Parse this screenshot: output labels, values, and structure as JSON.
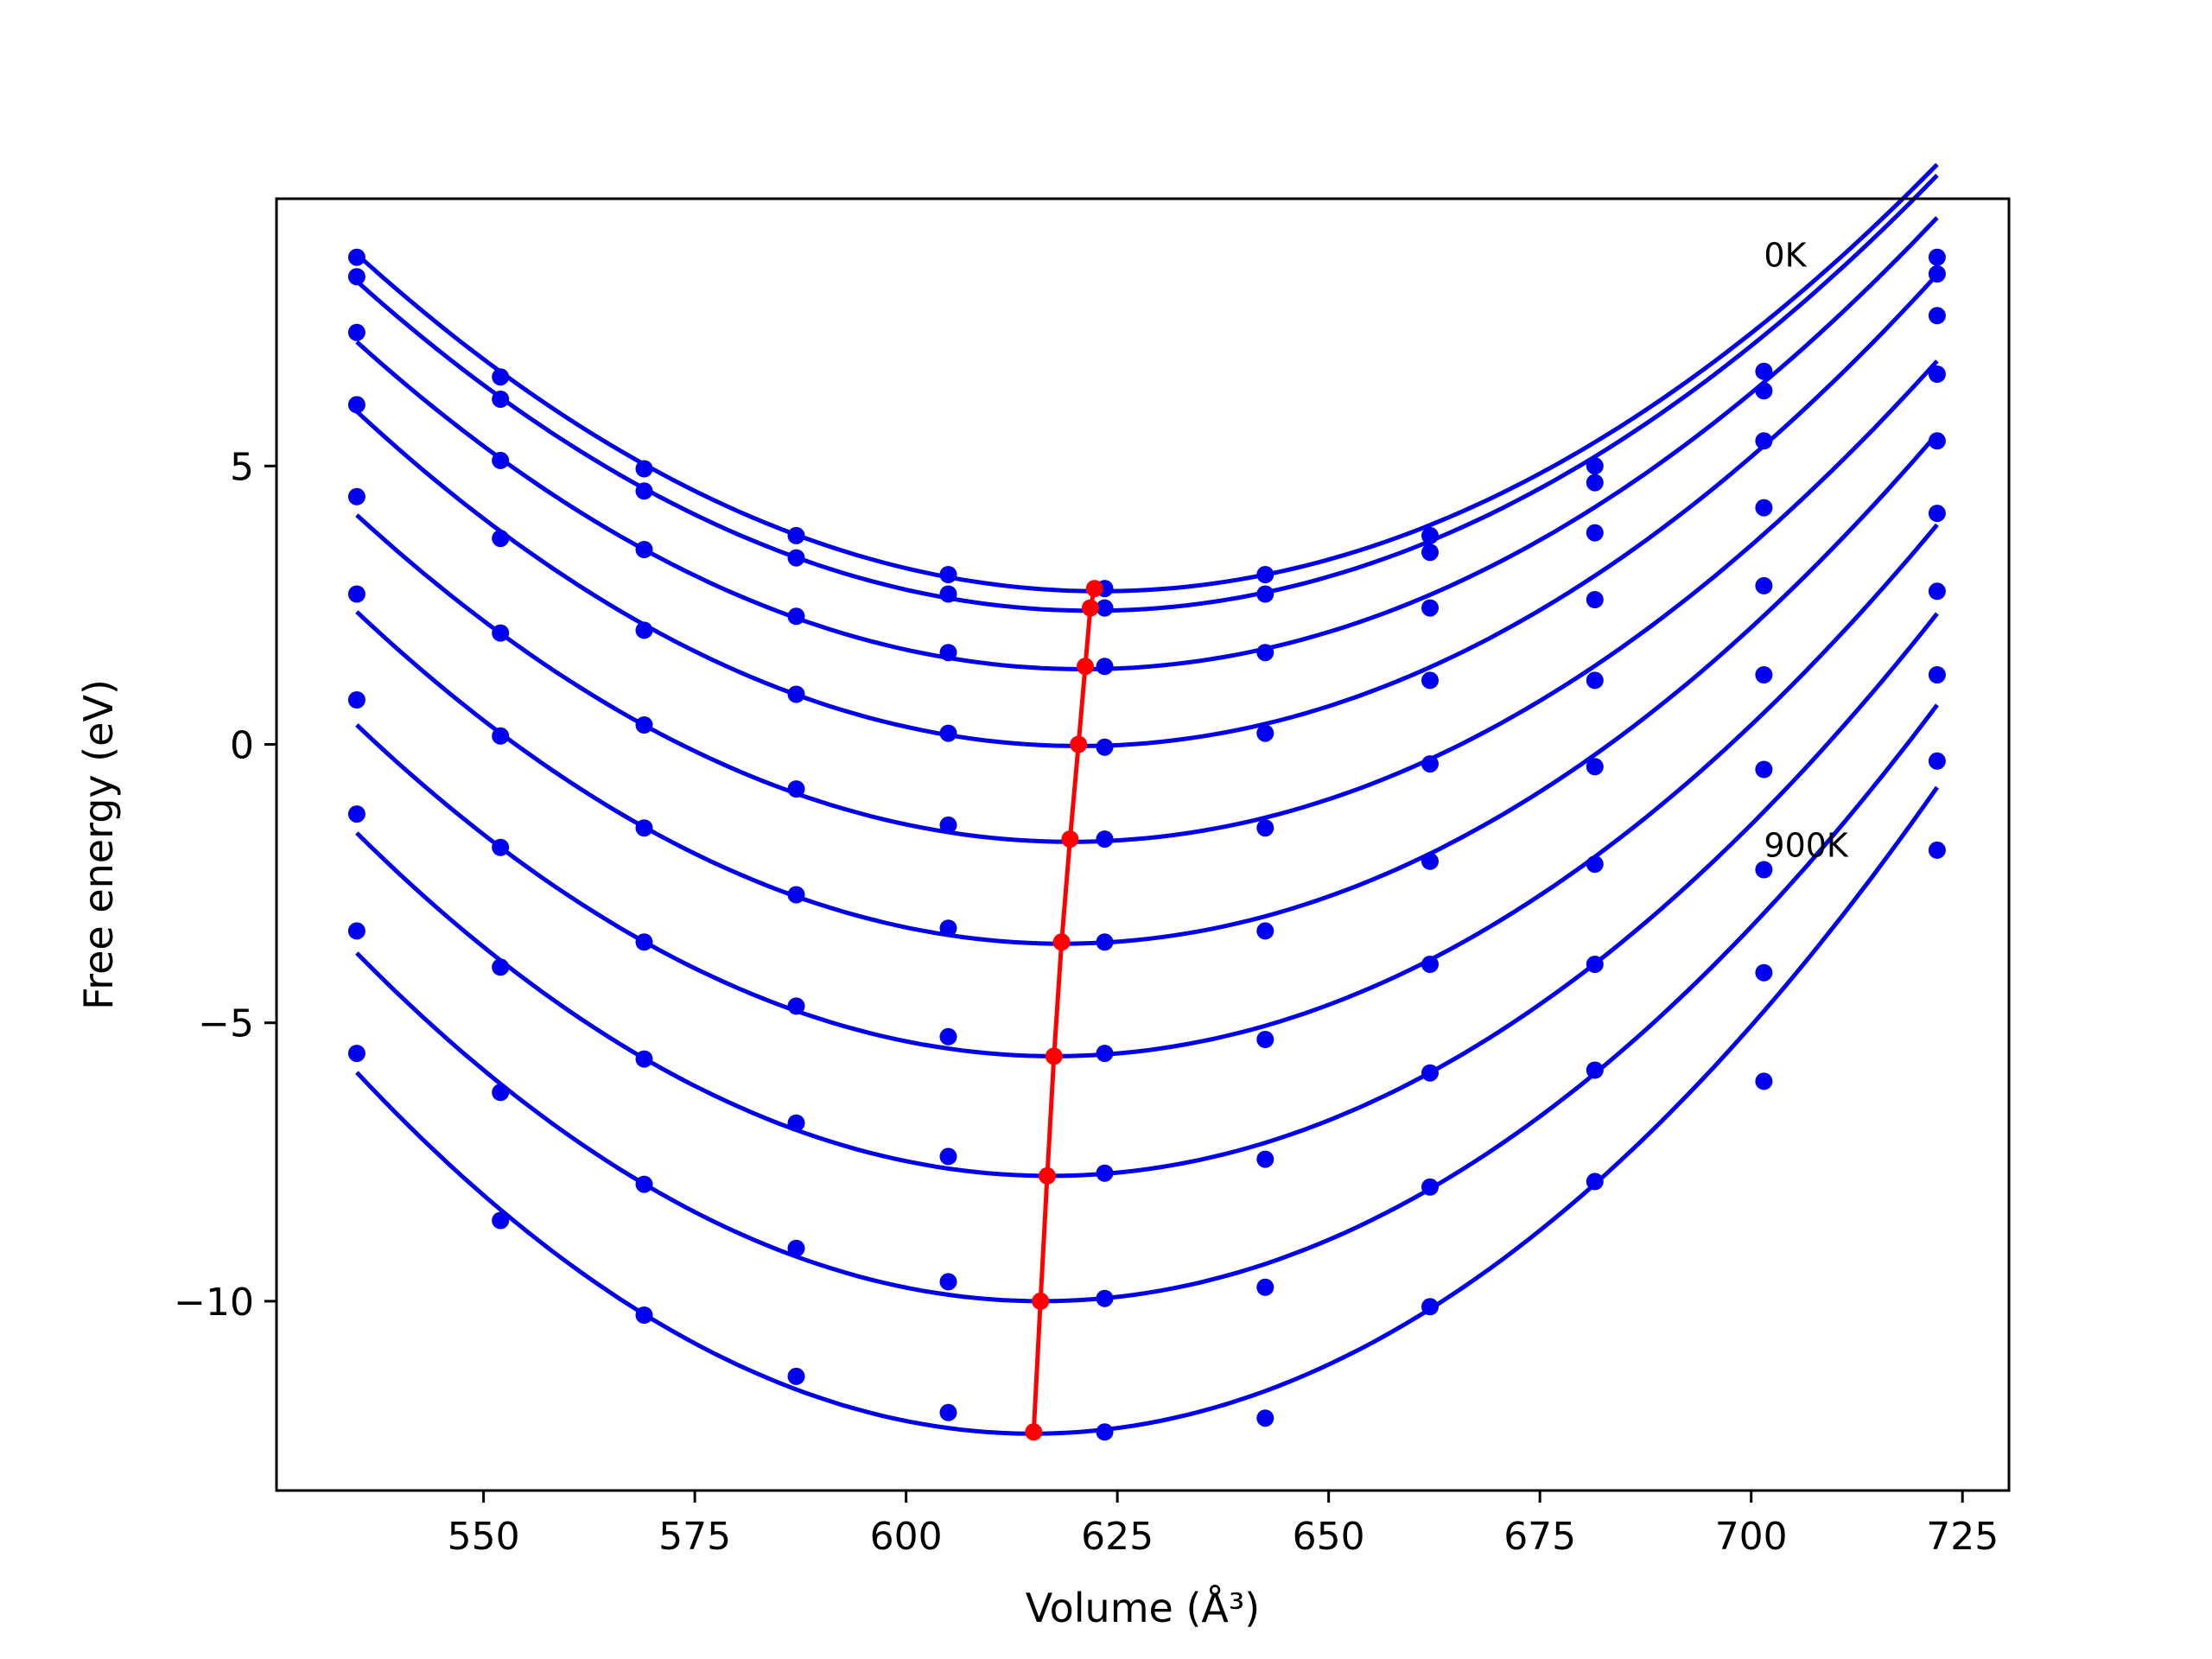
{
  "chart_data": {
    "type": "line",
    "title": "",
    "xlabel": "Volume (Å³)",
    "ylabel": "Free energy (eV)",
    "xlim": [
      525.5,
      730.5
    ],
    "ylim": [
      -13.4,
      9.8
    ],
    "xticks": [
      550,
      575,
      600,
      625,
      650,
      675,
      700,
      725
    ],
    "yticks": [
      -10,
      -5,
      0,
      5
    ],
    "ytick_labels": [
      "−10",
      "−5",
      "0",
      "5"
    ],
    "grid": false,
    "annotations": [
      {
        "text": "0K",
        "x": 701.5,
        "y": 8.8
      },
      {
        "text": "900K",
        "x": 701.5,
        "y": -1.8
      }
    ],
    "colors": {
      "curves": "#0000ee",
      "points": "#0000ee",
      "minimum_line": "#ff0000",
      "axes": "#000000"
    },
    "volumes": [
      535.0,
      552.0,
      569.0,
      587.0,
      605.0,
      623.5,
      642.5,
      662.0,
      681.5,
      701.5,
      722.0
    ],
    "series": [
      {
        "energies": [
          8.75,
          6.6,
          4.95,
          3.75,
          3.05,
          2.8,
          3.05,
          3.75,
          5.0,
          6.7,
          8.75
        ]
      },
      {
        "energies": [
          8.4,
          6.2,
          4.55,
          3.35,
          2.7,
          2.45,
          2.7,
          3.45,
          4.7,
          6.35,
          8.45
        ]
      },
      {
        "energies": [
          7.4,
          5.1,
          3.5,
          2.3,
          1.65,
          1.4,
          1.65,
          2.45,
          3.8,
          5.45,
          7.7
        ]
      },
      {
        "energies": [
          6.1,
          3.7,
          2.05,
          0.9,
          0.2,
          -0.05,
          0.2,
          1.15,
          2.6,
          4.25,
          6.65
        ]
      },
      {
        "energies": [
          4.45,
          2.0,
          0.35,
          -0.8,
          -1.45,
          -1.7,
          -1.5,
          -0.35,
          1.15,
          2.85,
          5.45
        ]
      },
      {
        "energies": [
          2.7,
          0.15,
          -1.5,
          -2.7,
          -3.3,
          -3.55,
          -3.35,
          -2.1,
          -0.4,
          1.25,
          4.15
        ]
      },
      {
        "energies": [
          0.8,
          -1.85,
          -3.55,
          -4.7,
          -5.25,
          -5.55,
          -5.3,
          -3.95,
          -2.15,
          -0.45,
          2.75
        ]
      },
      {
        "energies": [
          -1.25,
          -4.0,
          -5.65,
          -6.8,
          -7.4,
          -7.7,
          -7.45,
          -5.9,
          -3.95,
          -2.25,
          1.25
        ]
      },
      {
        "energies": [
          -3.35,
          -6.25,
          -7.9,
          -9.05,
          -9.65,
          -9.95,
          -9.75,
          -7.95,
          -5.85,
          -4.1,
          -0.3
        ]
      },
      {
        "energies": [
          -5.55,
          -8.55,
          -10.25,
          -11.35,
          -12.0,
          -12.35,
          -12.1,
          -10.1,
          -7.85,
          -6.05,
          -1.9
        ]
      }
    ],
    "fits": [
      {
        "v0": 623.0,
        "e0": 2.75,
        "a": 0.000782
      },
      {
        "v0": 622.0,
        "e0": 2.4,
        "a": 0.000782
      },
      {
        "v0": 621.0,
        "e0": 1.35,
        "a": 0.000795
      },
      {
        "v0": 620.5,
        "e0": -0.03,
        "a": 0.000822
      },
      {
        "v0": 619.5,
        "e0": -1.75,
        "a": 0.000822
      },
      {
        "v0": 618.5,
        "e0": -3.58,
        "a": 0.000855
      },
      {
        "v0": 617.5,
        "e0": -5.6,
        "a": 0.000874
      },
      {
        "v0": 617.0,
        "e0": -7.75,
        "a": 0.000916
      },
      {
        "v0": 616.0,
        "e0": -10.0,
        "a": 0.000953
      },
      {
        "v0": 615.0,
        "e0": -12.38,
        "a": 0.001014
      }
    ],
    "minima": {
      "volumes": [
        622.3,
        621.8,
        621.2,
        620.4,
        619.4,
        618.4,
        617.5,
        616.7,
        615.9,
        615.1
      ],
      "energies": [
        2.8,
        2.45,
        1.4,
        0.0,
        -1.7,
        -3.55,
        -5.6,
        -7.75,
        -10.0,
        -12.35
      ]
    }
  }
}
